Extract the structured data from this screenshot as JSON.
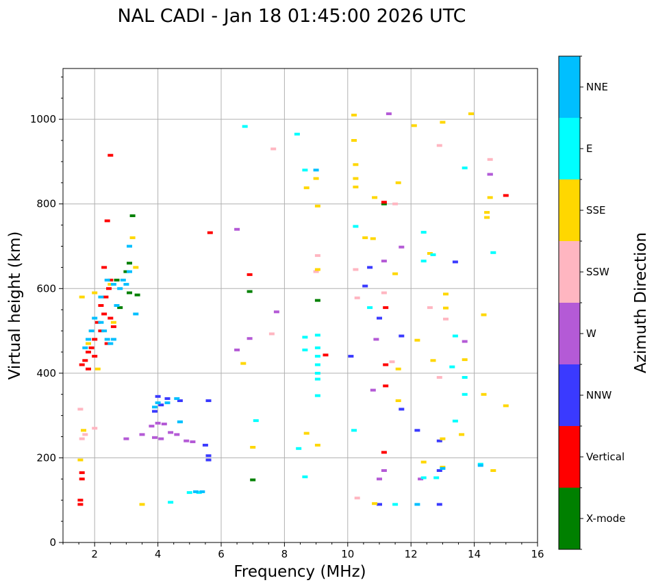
{
  "chart_data": {
    "type": "scatter",
    "title": "NAL CADI - Jan 18 01:45:00 2026 UTC",
    "xlabel": "Frequency (MHz)",
    "ylabel": "Virtual height (km)",
    "xlim": [
      1,
      16
    ],
    "ylim": [
      0,
      1120
    ],
    "xticks": [
      2,
      4,
      6,
      8,
      10,
      12,
      14,
      16
    ],
    "yticks": [
      0,
      200,
      400,
      600,
      800,
      1000
    ],
    "grid": true,
    "colorbar": {
      "label": "Azimuth Direction",
      "categories": [
        {
          "name": "X-mode",
          "color": "#008000"
        },
        {
          "name": "Vertical",
          "color": "#ff0000"
        },
        {
          "name": "NNW",
          "color": "#3a3aff"
        },
        {
          "name": "W",
          "color": "#b45ad6"
        },
        {
          "name": "SSW",
          "color": "#ffb6c1"
        },
        {
          "name": "SSE",
          "color": "#ffd700"
        },
        {
          "name": "E",
          "color": "#00ffff"
        },
        {
          "name": "NNE",
          "color": "#00bfff"
        }
      ]
    },
    "series": [
      {
        "name": "X-mode",
        "points": [
          [
            3.2,
            772
          ],
          [
            3.1,
            660
          ],
          [
            3.0,
            640
          ],
          [
            2.8,
            555
          ],
          [
            3.1,
            590
          ],
          [
            3.35,
            585
          ],
          [
            6.9,
            593
          ],
          [
            9.05,
            572
          ],
          [
            11.15,
            800
          ],
          [
            7.0,
            148
          ],
          [
            2.7,
            620
          ]
        ]
      },
      {
        "name": "Vertical",
        "points": [
          [
            2.4,
            760
          ],
          [
            2.3,
            650
          ],
          [
            2.5,
            620
          ],
          [
            2.45,
            600
          ],
          [
            2.35,
            580
          ],
          [
            2.2,
            560
          ],
          [
            2.3,
            540
          ],
          [
            2.1,
            520
          ],
          [
            2.2,
            500
          ],
          [
            2.0,
            480
          ],
          [
            1.9,
            460
          ],
          [
            1.8,
            450
          ],
          [
            1.7,
            430
          ],
          [
            1.6,
            420
          ],
          [
            1.8,
            410
          ],
          [
            2.0,
            440
          ],
          [
            2.4,
            470
          ],
          [
            2.5,
            530
          ],
          [
            2.6,
            510
          ],
          [
            2.5,
            915
          ],
          [
            5.65,
            732
          ],
          [
            6.9,
            633
          ],
          [
            1.55,
            100
          ],
          [
            1.6,
            165
          ],
          [
            1.6,
            150
          ],
          [
            1.55,
            90
          ],
          [
            9.3,
            443
          ],
          [
            11.15,
            213
          ],
          [
            11.2,
            420
          ],
          [
            11.2,
            555
          ],
          [
            11.2,
            370
          ],
          [
            15.0,
            820
          ],
          [
            11.15,
            804
          ]
        ]
      },
      {
        "name": "NNW",
        "points": [
          [
            4.0,
            345
          ],
          [
            4.3,
            340
          ],
          [
            4.7,
            335
          ],
          [
            4.1,
            325
          ],
          [
            3.9,
            310
          ],
          [
            5.6,
            335
          ],
          [
            5.6,
            205
          ],
          [
            5.6,
            195
          ],
          [
            10.7,
            650
          ],
          [
            10.55,
            606
          ],
          [
            11.0,
            530
          ],
          [
            10.1,
            440
          ],
          [
            11.7,
            315
          ],
          [
            11.7,
            488
          ],
          [
            12.2,
            265
          ],
          [
            12.9,
            240
          ],
          [
            12.9,
            170
          ],
          [
            13.4,
            663
          ],
          [
            12.9,
            90
          ],
          [
            14.5,
            870
          ],
          [
            5.5,
            230
          ],
          [
            11.0,
            90
          ]
        ]
      },
      {
        "name": "W",
        "points": [
          [
            4.2,
            280
          ],
          [
            4.4,
            260
          ],
          [
            3.8,
            275
          ],
          [
            3.5,
            255
          ],
          [
            4.6,
            255
          ],
          [
            4.9,
            240
          ],
          [
            5.1,
            238
          ],
          [
            4.1,
            245
          ],
          [
            3.9,
            248
          ],
          [
            4.0,
            282
          ],
          [
            3.0,
            245
          ],
          [
            6.5,
            740
          ],
          [
            6.5,
            455
          ],
          [
            6.9,
            482
          ],
          [
            7.75,
            545
          ],
          [
            11.15,
            665
          ],
          [
            11.7,
            698
          ],
          [
            10.9,
            480
          ],
          [
            10.8,
            360
          ],
          [
            11.0,
            150
          ],
          [
            11.15,
            170
          ],
          [
            12.3,
            150
          ],
          [
            13.7,
            475
          ],
          [
            14.5,
            870
          ],
          [
            11.3,
            1013
          ]
        ]
      },
      {
        "name": "SSW",
        "points": [
          [
            1.6,
            245
          ],
          [
            1.7,
            255
          ],
          [
            2.0,
            270
          ],
          [
            1.55,
            315
          ],
          [
            9.05,
            678
          ],
          [
            9.0,
            640
          ],
          [
            10.3,
            578
          ],
          [
            10.25,
            645
          ],
          [
            11.15,
            590
          ],
          [
            11.5,
            800
          ],
          [
            12.6,
            555
          ],
          [
            12.9,
            390
          ],
          [
            12.9,
            938
          ],
          [
            13.1,
            528
          ],
          [
            14.5,
            905
          ],
          [
            10.3,
            105
          ],
          [
            7.6,
            493
          ],
          [
            7.65,
            930
          ],
          [
            11.4,
            427
          ]
        ]
      },
      {
        "name": "SSE",
        "points": [
          [
            3.2,
            720
          ],
          [
            3.3,
            650
          ],
          [
            2.5,
            610
          ],
          [
            2.0,
            590
          ],
          [
            2.6,
            520
          ],
          [
            1.8,
            470
          ],
          [
            2.1,
            410
          ],
          [
            1.6,
            580
          ],
          [
            1.55,
            195
          ],
          [
            1.65,
            265
          ],
          [
            3.5,
            90
          ],
          [
            6.7,
            423
          ],
          [
            7.0,
            225
          ],
          [
            8.7,
            838
          ],
          [
            9.0,
            860
          ],
          [
            9.05,
            795
          ],
          [
            9.05,
            645
          ],
          [
            10.2,
            1010
          ],
          [
            10.2,
            950
          ],
          [
            10.25,
            893
          ],
          [
            10.25,
            860
          ],
          [
            10.25,
            840
          ],
          [
            10.55,
            720
          ],
          [
            10.8,
            718
          ],
          [
            10.85,
            815
          ],
          [
            11.5,
            635
          ],
          [
            11.6,
            850
          ],
          [
            12.1,
            985
          ],
          [
            12.2,
            478
          ],
          [
            12.4,
            190
          ],
          [
            12.6,
            683
          ],
          [
            12.7,
            430
          ],
          [
            13.0,
            993
          ],
          [
            13.0,
            245
          ],
          [
            13.0,
            178
          ],
          [
            13.1,
            587
          ],
          [
            13.1,
            554
          ],
          [
            13.6,
            255
          ],
          [
            13.7,
            432
          ],
          [
            13.9,
            1013
          ],
          [
            14.4,
            780
          ],
          [
            14.4,
            768
          ],
          [
            14.5,
            815
          ],
          [
            14.3,
            538
          ],
          [
            14.3,
            350
          ],
          [
            14.6,
            170
          ],
          [
            15.0,
            323
          ],
          [
            9.05,
            230
          ],
          [
            8.7,
            258
          ],
          [
            10.85,
            92
          ],
          [
            11.6,
            335
          ],
          [
            11.6,
            410
          ]
        ]
      },
      {
        "name": "E",
        "points": [
          [
            6.75,
            983
          ],
          [
            8.4,
            965
          ],
          [
            8.65,
            880
          ],
          [
            9.05,
            490
          ],
          [
            9.05,
            460
          ],
          [
            9.05,
            440
          ],
          [
            9.05,
            420
          ],
          [
            9.05,
            400
          ],
          [
            9.05,
            386
          ],
          [
            9.05,
            347
          ],
          [
            8.65,
            485
          ],
          [
            8.65,
            455
          ],
          [
            8.45,
            222
          ],
          [
            8.65,
            155
          ],
          [
            10.2,
            265
          ],
          [
            10.25,
            747
          ],
          [
            10.7,
            555
          ],
          [
            12.4,
            733
          ],
          [
            12.4,
            665
          ],
          [
            12.7,
            680
          ],
          [
            13.3,
            415
          ],
          [
            13.4,
            287
          ],
          [
            13.4,
            488
          ],
          [
            13.7,
            885
          ],
          [
            13.7,
            350
          ],
          [
            14.2,
            185
          ],
          [
            14.6,
            685
          ],
          [
            12.4,
            153
          ],
          [
            11.5,
            90
          ],
          [
            5.3,
            118
          ],
          [
            5.0,
            118
          ],
          [
            4.7,
            285
          ],
          [
            4.4,
            95
          ],
          [
            7.1,
            288
          ],
          [
            12.8,
            153
          ],
          [
            13.7,
            390
          ]
        ]
      },
      {
        "name": "NNE",
        "points": [
          [
            2.0,
            530
          ],
          [
            2.2,
            520
          ],
          [
            2.3,
            500
          ],
          [
            2.4,
            480
          ],
          [
            2.5,
            470
          ],
          [
            2.6,
            480
          ],
          [
            2.7,
            560
          ],
          [
            2.8,
            600
          ],
          [
            3.0,
            610
          ],
          [
            3.1,
            640
          ],
          [
            2.9,
            620
          ],
          [
            3.3,
            540
          ],
          [
            1.9,
            500
          ],
          [
            1.8,
            480
          ],
          [
            1.7,
            460
          ],
          [
            2.6,
            610
          ],
          [
            2.2,
            580
          ],
          [
            3.1,
            700
          ],
          [
            2.4,
            620
          ],
          [
            4.0,
            330
          ],
          [
            4.3,
            330
          ],
          [
            4.6,
            340
          ],
          [
            3.9,
            320
          ],
          [
            4.7,
            285
          ],
          [
            5.2,
            120
          ],
          [
            5.4,
            120
          ],
          [
            9.0,
            880
          ],
          [
            12.2,
            90
          ],
          [
            13.0,
            175
          ],
          [
            14.2,
            182
          ]
        ]
      }
    ]
  }
}
